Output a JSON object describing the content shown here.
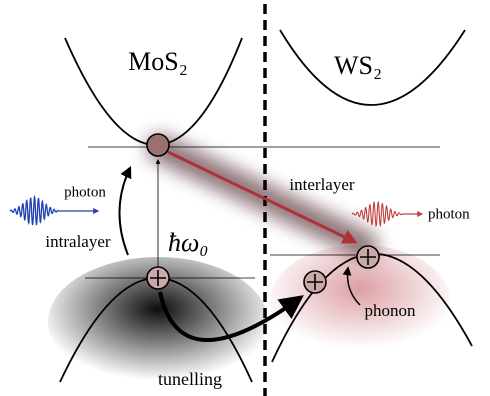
{
  "labels": {
    "left_material": "MoS₂",
    "right_material": "WS₂",
    "photon_left": "photon",
    "photon_right": "photon",
    "intralayer": "intralayer",
    "interlayer": "interlayer",
    "energy": "ħω₀",
    "phonon": "phonon",
    "tunelling": "tunelling"
  }
}
